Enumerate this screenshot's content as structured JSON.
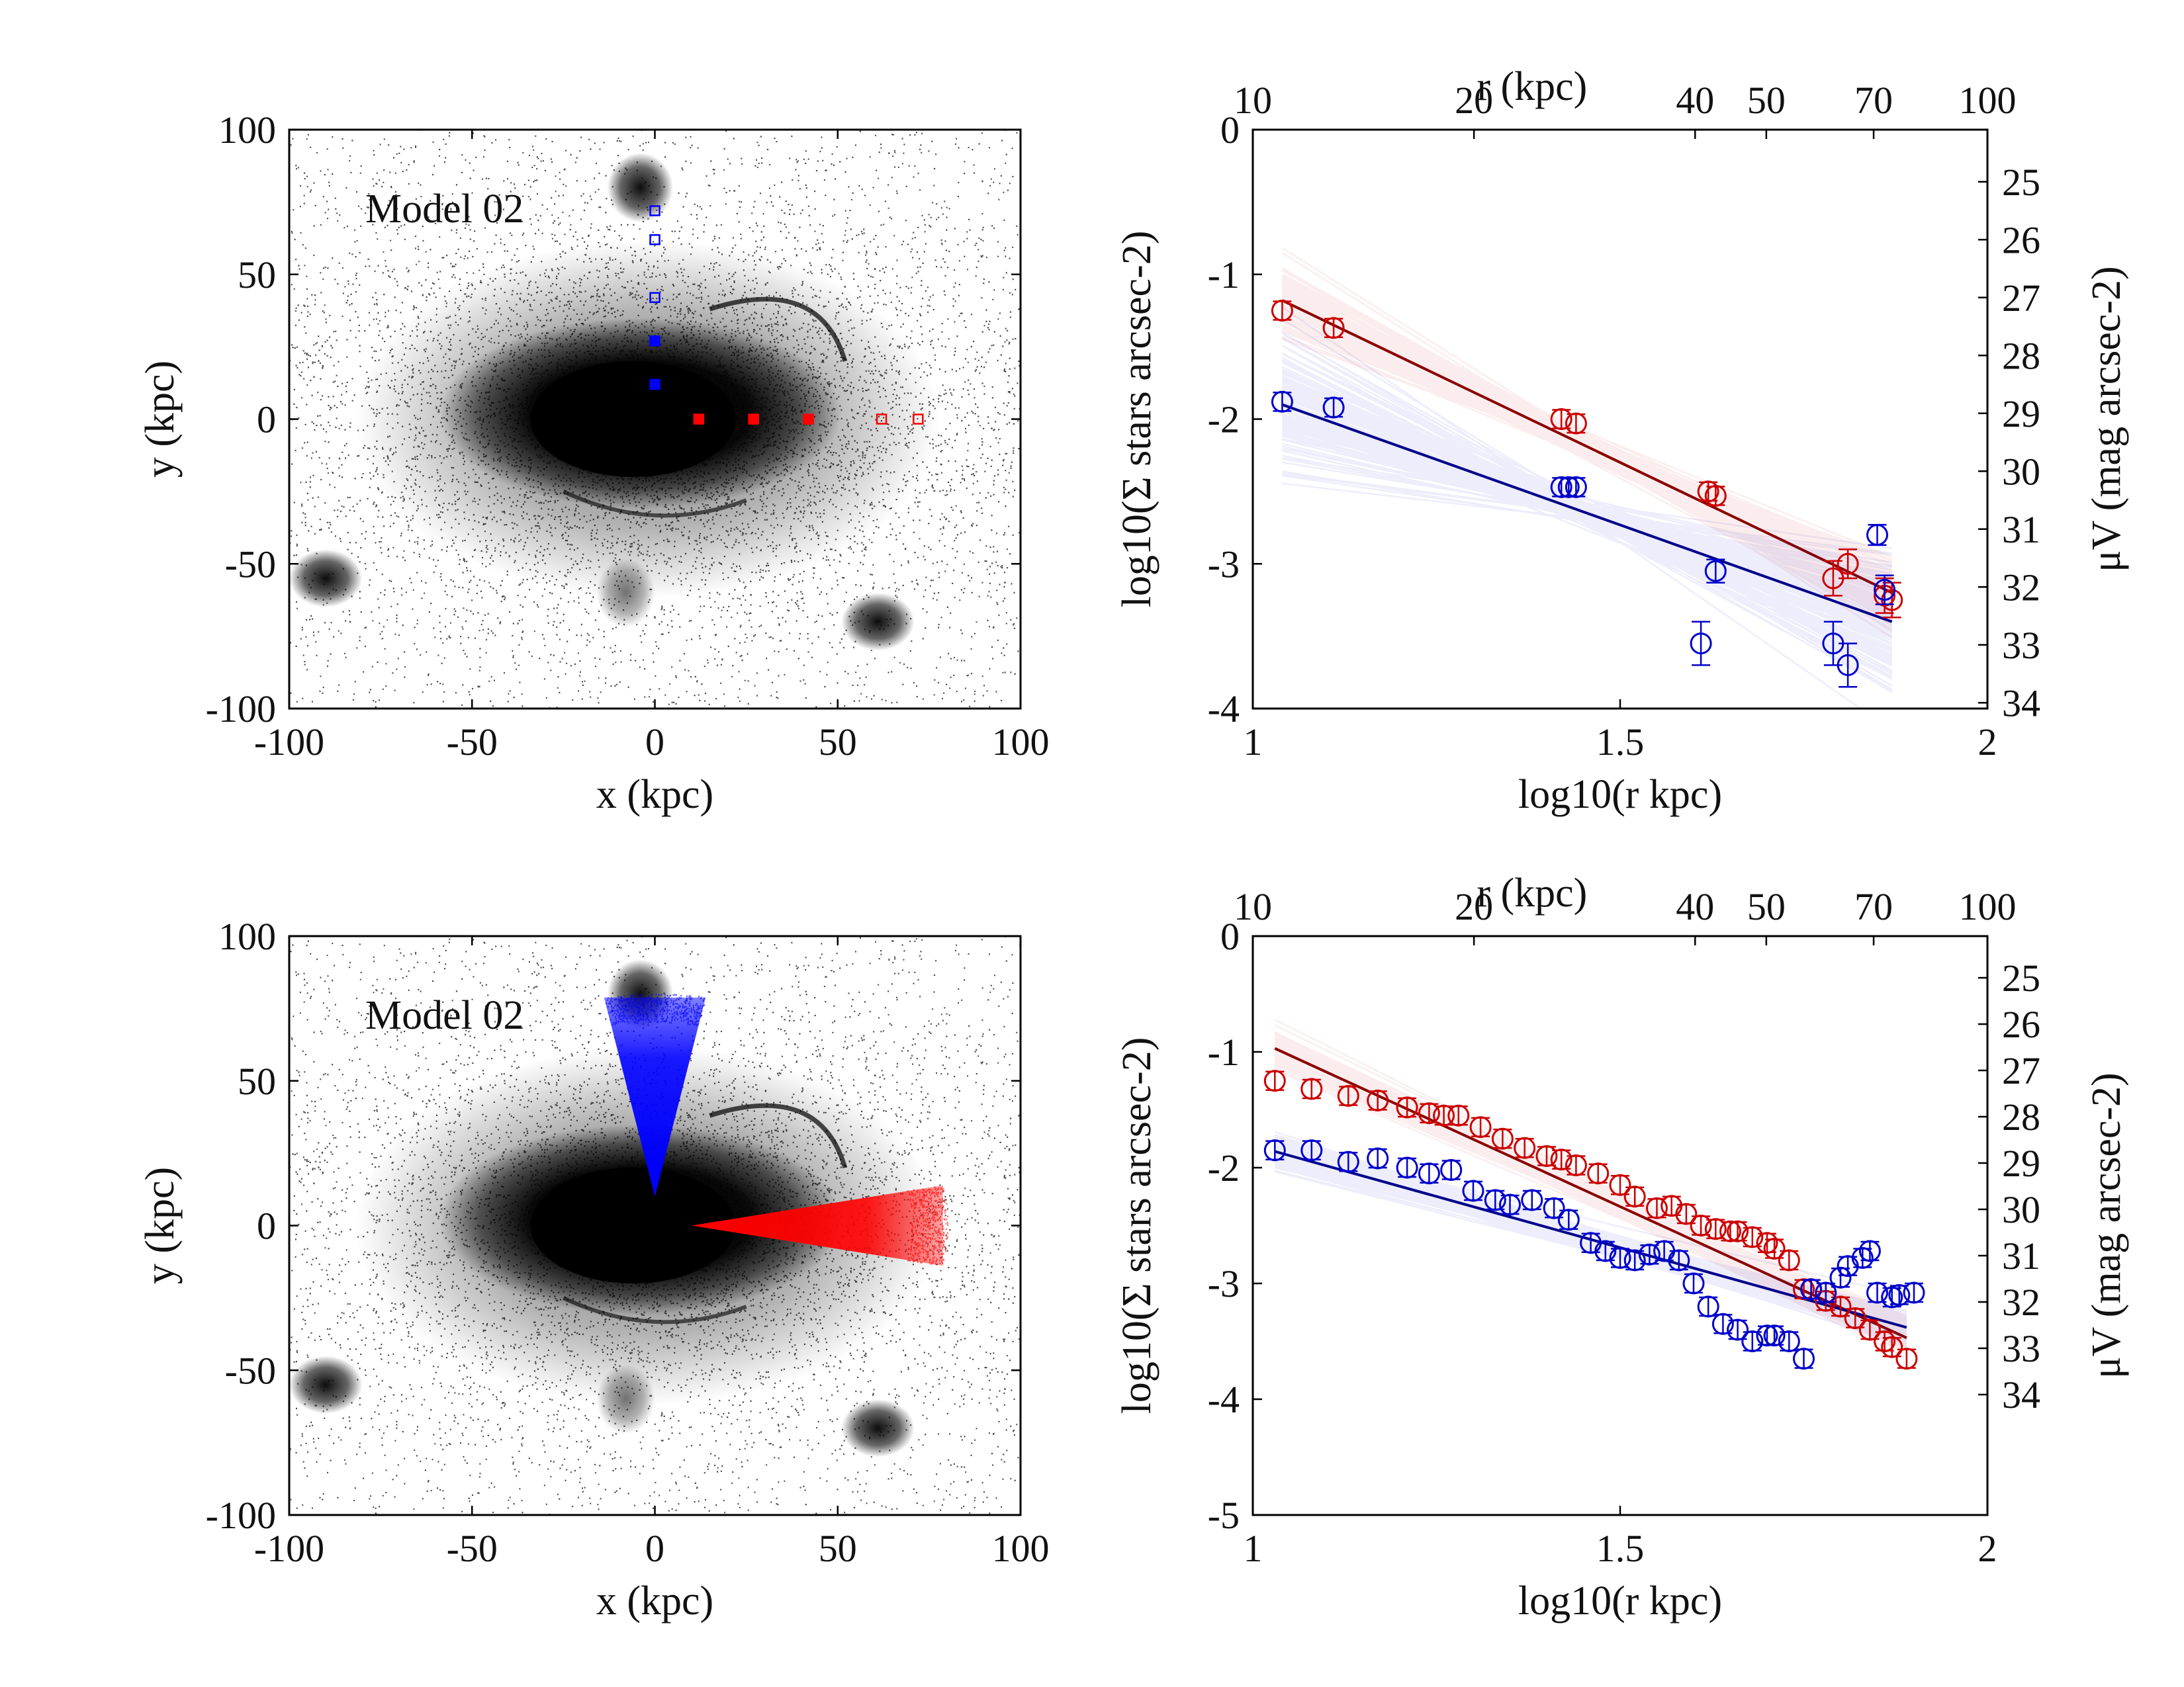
{
  "chart_data": [
    {
      "type": "scatter",
      "panel": "top-left",
      "annotation": "Model 02",
      "xlabel": "x (kpc)",
      "ylabel": "y (kpc)",
      "xlim": [
        -100,
        100
      ],
      "ylim": [
        -100,
        100
      ],
      "xticks": [
        "-100",
        "-50",
        "0",
        "50",
        "100"
      ],
      "yticks": [
        "-100",
        "-50",
        "0",
        "50",
        "100"
      ],
      "grid": false,
      "background_colors": {
        "particles": "#000000"
      },
      "fields": [
        {
          "name": "red",
          "color": "#ff0000",
          "shape": "squares",
          "x": [
            12,
            27,
            42,
            62,
            72
          ],
          "y": [
            0,
            0,
            0,
            0,
            0
          ],
          "filled": [
            true,
            true,
            true,
            false,
            false
          ]
        },
        {
          "name": "blue",
          "color": "#0000ff",
          "shape": "squares",
          "x": [
            0,
            0,
            0,
            0,
            0
          ],
          "y": [
            12,
            27,
            42,
            62,
            72
          ],
          "filled": [
            true,
            true,
            false,
            false,
            false
          ]
        }
      ]
    },
    {
      "type": "line",
      "panel": "top-right",
      "xlabel": "log10(r kpc)",
      "ylabel": "log10(Σ stars arcsec-2)",
      "y2label": "μV (mag arcsec-2)",
      "x2label": "r (kpc)",
      "xlim": [
        1,
        2
      ],
      "ylim": [
        -4,
        0
      ],
      "xticks": [
        "1",
        "1.5",
        "2"
      ],
      "yticks": [
        "-4",
        "-3",
        "-2",
        "-1",
        "0"
      ],
      "x2ticks": [
        "10",
        "20",
        "40",
        "50",
        "70",
        "100"
      ],
      "x2tick_values": [
        10,
        20,
        40,
        50,
        70,
        100
      ],
      "y2ticks": [
        "25",
        "26",
        "27",
        "28",
        "29",
        "30",
        "31",
        "32",
        "33",
        "34"
      ],
      "y2_mu_at_y0": 24.1,
      "grid": false,
      "colors": {
        "red": "#cc0000",
        "blue": "#0000cc",
        "red_fit": "#8b0000",
        "blue_fit": "#00008b"
      },
      "series": [
        {
          "name": "red",
          "x": [
            1.04,
            1.11,
            1.42,
            1.44,
            1.62,
            1.63,
            1.79,
            1.81,
            1.86,
            1.87
          ],
          "y": [
            -1.25,
            -1.37,
            -2.0,
            -2.03,
            -2.5,
            -2.53,
            -3.1,
            -3.0,
            -3.22,
            -3.25
          ],
          "err": [
            0.03,
            0.03,
            0.04,
            0.04,
            0.05,
            0.05,
            0.12,
            0.1,
            0.12,
            0.12
          ],
          "fit": {
            "x": [
              1.04,
              1.87
            ],
            "y": [
              -1.18,
              -3.2
            ]
          }
        },
        {
          "name": "blue",
          "x": [
            1.04,
            1.11,
            1.42,
            1.43,
            1.44,
            1.61,
            1.63,
            1.79,
            1.81,
            1.85,
            1.86
          ],
          "y": [
            -1.88,
            -1.92,
            -2.47,
            -2.47,
            -2.47,
            -3.55,
            -3.05,
            -3.55,
            -3.7,
            -2.8,
            -3.18
          ],
          "err": [
            0.03,
            0.03,
            0.04,
            0.04,
            0.04,
            0.15,
            0.08,
            0.15,
            0.15,
            0.07,
            0.1
          ],
          "fit": {
            "x": [
              1.04,
              1.87
            ],
            "y": [
              -1.9,
              -3.4
            ]
          }
        }
      ]
    },
    {
      "type": "scatter",
      "panel": "bottom-left",
      "annotation": "Model 02",
      "xlabel": "x (kpc)",
      "ylabel": "y (kpc)",
      "xlim": [
        -100,
        100
      ],
      "ylim": [
        -100,
        100
      ],
      "xticks": [
        "-100",
        "-50",
        "0",
        "50",
        "100"
      ],
      "yticks": [
        "-100",
        "-50",
        "0",
        "50",
        "100"
      ],
      "grid": false,
      "fields": [
        {
          "name": "red",
          "color": "#ff0000",
          "shape": "wedge",
          "r_range": [
            10,
            80
          ],
          "angle_center": 0,
          "half_angle_deg": 10
        },
        {
          "name": "blue",
          "color": "#0000ff",
          "shape": "wedge",
          "r_range": [
            10,
            80
          ],
          "angle_center": 90,
          "half_angle_deg": 10
        }
      ]
    },
    {
      "type": "line",
      "panel": "bottom-right",
      "xlabel": "log10(r kpc)",
      "ylabel": "log10(Σ stars arcsec-2)",
      "y2label": "μV (mag arcsec-2)",
      "x2label": "r (kpc)",
      "xlim": [
        1,
        2
      ],
      "ylim": [
        -5,
        0
      ],
      "xticks": [
        "1",
        "1.5",
        "2"
      ],
      "yticks": [
        "-5",
        "-4",
        "-3",
        "-2",
        "-1",
        "0"
      ],
      "x2ticks": [
        "10",
        "20",
        "40",
        "50",
        "70",
        "100"
      ],
      "x2tick_values": [
        10,
        20,
        40,
        50,
        70,
        100
      ],
      "y2ticks": [
        "25",
        "26",
        "27",
        "28",
        "29",
        "30",
        "31",
        "32",
        "33",
        "34"
      ],
      "y2_mu_at_y0": 24.1,
      "grid": false,
      "colors": {
        "red": "#cc0000",
        "blue": "#0000cc",
        "red_fit": "#8b0000",
        "blue_fit": "#00008b"
      },
      "series": [
        {
          "name": "red",
          "x": [
            1.03,
            1.08,
            1.13,
            1.17,
            1.21,
            1.24,
            1.26,
            1.28,
            1.31,
            1.34,
            1.37,
            1.4,
            1.42,
            1.44,
            1.47,
            1.5,
            1.52,
            1.55,
            1.57,
            1.59,
            1.61,
            1.63,
            1.65,
            1.66,
            1.68,
            1.7,
            1.71,
            1.73,
            1.75,
            1.76,
            1.78,
            1.8,
            1.82,
            1.84,
            1.86,
            1.87,
            1.89
          ],
          "y": [
            -1.25,
            -1.32,
            -1.38,
            -1.42,
            -1.48,
            -1.53,
            -1.55,
            -1.55,
            -1.65,
            -1.75,
            -1.83,
            -1.9,
            -1.93,
            -1.98,
            -2.05,
            -2.15,
            -2.25,
            -2.35,
            -2.33,
            -2.4,
            -2.5,
            -2.53,
            -2.55,
            -2.55,
            -2.6,
            -2.65,
            -2.7,
            -2.8,
            -3.05,
            -3.05,
            -3.15,
            -3.2,
            -3.3,
            -3.4,
            -3.5,
            -3.55,
            -3.65
          ],
          "err": [
            0.02,
            0.02,
            0.02,
            0.02,
            0.02,
            0.02,
            0.02,
            0.02,
            0.02,
            0.02,
            0.02,
            0.02,
            0.02,
            0.02,
            0.02,
            0.02,
            0.02,
            0.03,
            0.03,
            0.03,
            0.03,
            0.03,
            0.03,
            0.03,
            0.03,
            0.03,
            0.03,
            0.03,
            0.05,
            0.05,
            0.05,
            0.06,
            0.06,
            0.06,
            0.07,
            0.07,
            0.08
          ],
          "fit": {
            "x": [
              1.03,
              1.89
            ],
            "y": [
              -0.97,
              -3.47
            ]
          }
        },
        {
          "name": "blue",
          "x": [
            1.03,
            1.08,
            1.13,
            1.17,
            1.21,
            1.24,
            1.27,
            1.3,
            1.33,
            1.35,
            1.38,
            1.41,
            1.43,
            1.46,
            1.48,
            1.5,
            1.52,
            1.54,
            1.56,
            1.58,
            1.6,
            1.62,
            1.64,
            1.66,
            1.68,
            1.7,
            1.71,
            1.73,
            1.75,
            1.76,
            1.78,
            1.8,
            1.81,
            1.83,
            1.84,
            1.85,
            1.87,
            1.88,
            1.9
          ],
          "y": [
            -1.85,
            -1.85,
            -1.95,
            -1.92,
            -2.0,
            -2.05,
            -2.02,
            -2.2,
            -2.28,
            -2.32,
            -2.28,
            -2.35,
            -2.45,
            -2.65,
            -2.72,
            -2.78,
            -2.8,
            -2.75,
            -2.72,
            -2.8,
            -3.0,
            -3.2,
            -3.35,
            -3.4,
            -3.5,
            -3.45,
            -3.45,
            -3.5,
            -3.65,
            -3.05,
            -3.08,
            -2.95,
            -2.85,
            -2.78,
            -2.72,
            -3.08,
            -3.12,
            -3.1,
            -3.08
          ],
          "err": [
            0.03,
            0.03,
            0.03,
            0.03,
            0.03,
            0.03,
            0.03,
            0.03,
            0.03,
            0.03,
            0.03,
            0.03,
            0.03,
            0.03,
            0.04,
            0.04,
            0.04,
            0.04,
            0.04,
            0.04,
            0.05,
            0.05,
            0.06,
            0.06,
            0.06,
            0.06,
            0.06,
            0.07,
            0.08,
            0.05,
            0.05,
            0.05,
            0.05,
            0.05,
            0.05,
            0.05,
            0.05,
            0.05,
            0.05
          ],
          "fit": {
            "x": [
              1.03,
              1.89
            ],
            "y": [
              -1.86,
              -3.38
            ]
          }
        }
      ]
    }
  ]
}
